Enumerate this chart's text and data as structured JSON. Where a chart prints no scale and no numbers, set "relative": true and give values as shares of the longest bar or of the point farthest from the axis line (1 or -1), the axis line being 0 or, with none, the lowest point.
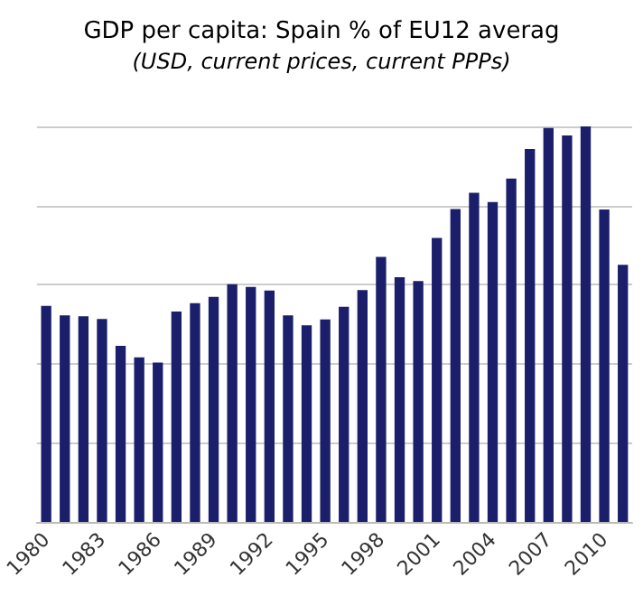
{
  "chart_data": {
    "type": "bar",
    "title": "GDP per capita: Spain % of EU12 averag",
    "subtitle": "(USD, current prices, current PPPs)",
    "relative": true,
    "grid": "y",
    "color": "#1b1f6b",
    "categories": [
      "1980",
      null,
      null,
      "1983",
      null,
      null,
      "1986",
      null,
      null,
      "1989",
      null,
      null,
      "1992",
      null,
      null,
      "1995",
      null,
      null,
      "1998",
      null,
      null,
      "2001",
      null,
      null,
      "2004",
      null,
      null,
      "2007",
      null,
      null,
      "2010",
      null
    ],
    "values": [
      0.546,
      0.522,
      0.52,
      0.513,
      0.445,
      0.416,
      0.403,
      0.532,
      0.553,
      0.569,
      0.601,
      0.594,
      0.585,
      0.522,
      0.497,
      0.512,
      0.544,
      0.586,
      0.67,
      0.619,
      0.609,
      0.718,
      0.791,
      0.832,
      0.809,
      0.868,
      0.943,
      0.996,
      0.977,
      1,
      0.79,
      0.65
    ]
  }
}
